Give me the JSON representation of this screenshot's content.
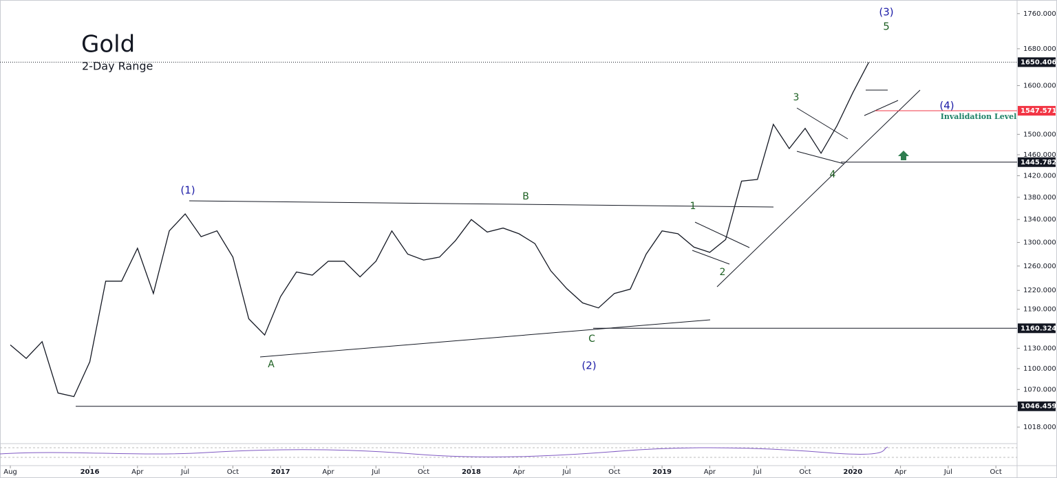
{
  "chart_data": {
    "type": "line",
    "title": "Gold",
    "subtitle": "2-Day Range",
    "log_scale": true,
    "x": [
      "2015-08",
      "2015-09",
      "2015-10",
      "2015-11",
      "2015-12",
      "2016-01",
      "2016-02",
      "2016-03",
      "2016-04",
      "2016-05",
      "2016-06",
      "2016-07",
      "2016-08",
      "2016-09",
      "2016-10",
      "2016-11",
      "2016-12",
      "2017-01",
      "2017-02",
      "2017-03",
      "2017-04",
      "2017-05",
      "2017-06",
      "2017-07",
      "2017-08",
      "2017-09",
      "2017-10",
      "2017-11",
      "2017-12",
      "2018-01",
      "2018-02",
      "2018-03",
      "2018-04",
      "2018-05",
      "2018-06",
      "2018-07",
      "2018-08",
      "2018-09",
      "2018-10",
      "2018-11",
      "2018-12",
      "2019-01",
      "2019-02",
      "2019-03",
      "2019-04",
      "2019-05",
      "2019-06",
      "2019-07",
      "2019-08",
      "2019-09",
      "2019-10",
      "2019-11",
      "2019-12",
      "2020-01",
      "2020-02"
    ],
    "series": [
      {
        "name": "Gold",
        "color": "#131722",
        "values": [
          1135,
          1115,
          1140,
          1065,
          1060,
          1110,
          1235,
          1235,
          1290,
          1215,
          1320,
          1350,
          1310,
          1320,
          1275,
          1175,
          1150,
          1210,
          1250,
          1245,
          1268,
          1268,
          1242,
          1268,
          1320,
          1280,
          1270,
          1275,
          1303,
          1340,
          1318,
          1325,
          1315,
          1298,
          1252,
          1223,
          1200,
          1192,
          1215,
          1222,
          1280,
          1320,
          1315,
          1292,
          1283,
          1305,
          1410,
          1413,
          1520,
          1472,
          1512,
          1463,
          1517,
          1585,
          1650
        ]
      }
    ],
    "ylim": [
      996,
      1792
    ],
    "yticks": [
      {
        "value": 1018,
        "label": "1018.000"
      },
      {
        "value": 1070,
        "label": "1070.000"
      },
      {
        "value": 1100,
        "label": "1100.000"
      },
      {
        "value": 1130,
        "label": "1130.000"
      },
      {
        "value": 1190,
        "label": "1190.000"
      },
      {
        "value": 1220,
        "label": "1220.000"
      },
      {
        "value": 1260,
        "label": "1260.000"
      },
      {
        "value": 1300,
        "label": "1300.000"
      },
      {
        "value": 1340,
        "label": "1340.000"
      },
      {
        "value": 1380,
        "label": "1380.000"
      },
      {
        "value": 1420,
        "label": "1420.000"
      },
      {
        "value": 1460,
        "label": "1460.000"
      },
      {
        "value": 1500,
        "label": "1500.000"
      },
      {
        "value": 1600,
        "label": "1600.000"
      },
      {
        "value": 1680,
        "label": "1680.000"
      },
      {
        "value": 1760,
        "label": "1760.000"
      }
    ],
    "xticks": [
      {
        "value": "2015-08",
        "label": "Aug"
      },
      {
        "value": "2016-01",
        "label": "2016"
      },
      {
        "value": "2016-04",
        "label": "Apr"
      },
      {
        "value": "2016-07",
        "label": "Jul"
      },
      {
        "value": "2016-10",
        "label": "Oct"
      },
      {
        "value": "2017-01",
        "label": "2017"
      },
      {
        "value": "2017-04",
        "label": "Apr"
      },
      {
        "value": "2017-07",
        "label": "Jul"
      },
      {
        "value": "2017-10",
        "label": "Oct"
      },
      {
        "value": "2018-01",
        "label": "2018"
      },
      {
        "value": "2018-04",
        "label": "Apr"
      },
      {
        "value": "2018-07",
        "label": "Jul"
      },
      {
        "value": "2018-10",
        "label": "Oct"
      },
      {
        "value": "2019-01",
        "label": "2019"
      },
      {
        "value": "2019-04",
        "label": "Apr"
      },
      {
        "value": "2019-07",
        "label": "Jul"
      },
      {
        "value": "2019-10",
        "label": "Oct"
      },
      {
        "value": "2020-01",
        "label": "2020"
      },
      {
        "value": "2020-04",
        "label": "Apr"
      },
      {
        "value": "2020-07",
        "label": "Jul"
      },
      {
        "value": "2020-10",
        "label": "Oct"
      }
    ],
    "levels": [
      {
        "value": 1650.406,
        "color": "#131722"
      },
      {
        "value": 1547.571,
        "color": "#f23645"
      },
      {
        "value": 1445.782,
        "color": "#131722"
      },
      {
        "value": 1160.324,
        "color": "#131722"
      },
      {
        "value": 1046.459,
        "color": "#131722"
      }
    ],
    "annotations": [
      {
        "text": "(3)",
        "color": "#1a1aa6"
      },
      {
        "text": "5",
        "color": "#1b5e20"
      },
      {
        "text": "(1)",
        "color": "#1a1aa6"
      },
      {
        "text": "B",
        "color": "#1b5e20"
      },
      {
        "text": "1",
        "color": "#1b5e20"
      },
      {
        "text": "3",
        "color": "#1b5e20"
      },
      {
        "text": "(4)",
        "color": "#1a1aa6"
      },
      {
        "text": "Invalidation Level",
        "color": "#1a7f64"
      },
      {
        "text": "4",
        "color": "#1b5e20"
      },
      {
        "text": "2",
        "color": "#1b5e20"
      },
      {
        "text": "A",
        "color": "#1b5e20"
      },
      {
        "text": "C",
        "color": "#1b5e20"
      },
      {
        "text": "(2)",
        "color": "#1a1aa6"
      }
    ]
  }
}
